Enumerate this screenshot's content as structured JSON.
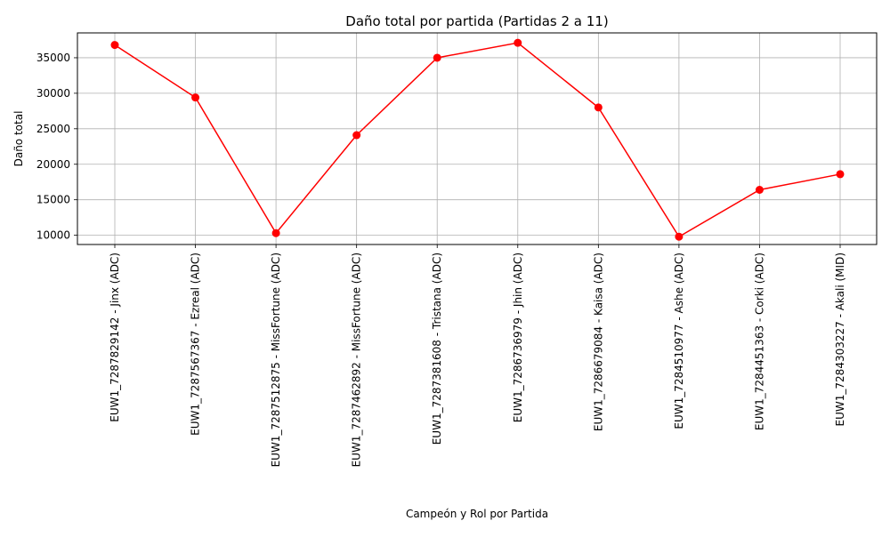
{
  "chart_data": {
    "type": "line",
    "title": "Daño total por partida (Partidas 2 a 11)",
    "xlabel": "Campeón y Rol por Partida",
    "ylabel": "Daño total",
    "categories": [
      "EUW1_7287829142 - Jinx (ADC)",
      "EUW1_7287567367 - Ezreal (ADC)",
      "EUW1_7287512875 - MissFortune (ADC)",
      "EUW1_7287462892 - MissFortune (ADC)",
      "EUW1_7287381608 - Tristana (ADC)",
      "EUW1_7286736979 - Jhin (ADC)",
      "EUW1_7286679084 - Kaisa (ADC)",
      "EUW1_7284510977 - Ashe (ADC)",
      "EUW1_7284451363 - Corki (ADC)",
      "EUW1_7284303227 - Akali (MID)"
    ],
    "series": [
      {
        "values": [
          36800,
          29400,
          10300,
          24100,
          35000,
          37100,
          28000,
          9800,
          16400,
          18600
        ],
        "color": "#ff0000",
        "marker": "circle"
      }
    ],
    "yticks": [
      10000,
      15000,
      20000,
      25000,
      30000,
      35000
    ],
    "ylim": [
      8700,
      38500
    ],
    "grid": true
  }
}
